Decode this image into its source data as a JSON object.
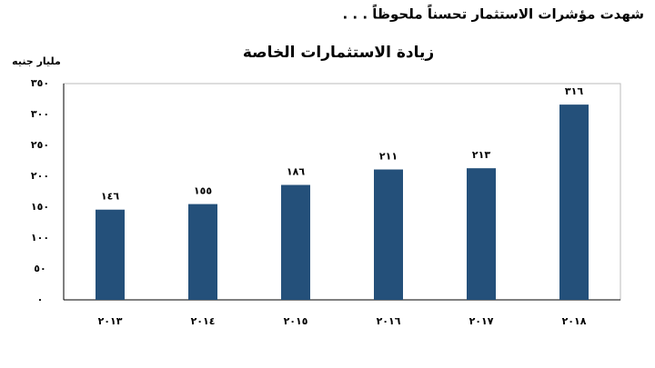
{
  "chart_data": {
    "type": "bar",
    "heading": "شهدت مؤشرات الاستثمار تحسناً ملحوظاً . . .",
    "title": "زيادة الاستثمارات الخاصة",
    "ylabel": "مليار جنيه",
    "categories": [
      "٢٠١٣",
      "٢٠١٤",
      "٢٠١٥",
      "٢٠١٦",
      "٢٠١٧",
      "٢٠١٨"
    ],
    "values": [
      146,
      155,
      186,
      211,
      213,
      316
    ],
    "value_labels": [
      "١٤٦",
      "١٥٥",
      "١٨٦",
      "٢١١",
      "٢١٣",
      "٣١٦"
    ],
    "color": "#24507a",
    "ylim": [
      0,
      350
    ],
    "yticks": [
      {
        "value": 0,
        "label": "٠"
      },
      {
        "value": 50,
        "label": "٥٠"
      },
      {
        "value": 100,
        "label": "١٠٠"
      },
      {
        "value": 150,
        "label": "١٥٠"
      },
      {
        "value": 200,
        "label": "٢٠٠"
      },
      {
        "value": 250,
        "label": "٢٥٠"
      },
      {
        "value": 300,
        "label": "٣٠٠"
      },
      {
        "value": 350,
        "label": "٣٥٠"
      }
    ],
    "grid": false
  }
}
